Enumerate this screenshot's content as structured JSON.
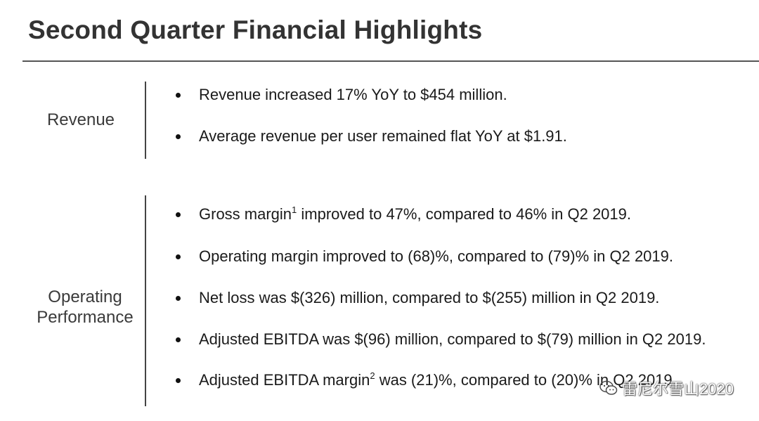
{
  "page": {
    "title": "Second Quarter Financial Highlights"
  },
  "sections": {
    "revenue": {
      "label": "Revenue",
      "bullets": [
        {
          "text": "Revenue increased 17% YoY to $454 million."
        },
        {
          "text": "Average revenue per user remained flat YoY at $1.91."
        }
      ]
    },
    "operating": {
      "label_line1": "Operating",
      "label_line2": "Performance",
      "bullets": [
        {
          "before": "Gross margin",
          "sup": "1",
          "after": " improved to 47%, compared to 46% in Q2 2019."
        },
        {
          "text": "Operating margin improved to (68)%, compared to (79)% in Q2 2019."
        },
        {
          "text": "Net loss was $(326) million, compared to $(255) million in Q2 2019."
        },
        {
          "text": "Adjusted EBITDA was $(96) million, compared to $(79) million in Q2 2019."
        },
        {
          "before": "Adjusted EBITDA margin",
          "sup": "2",
          "after": " was (21)%, compared to (20)% in Q2 2019."
        }
      ]
    }
  },
  "watermark": {
    "text": "雷尼尔雪山2020",
    "icon": "wechat-icon"
  },
  "colors": {
    "title": "#333333",
    "rule": "#555555",
    "text": "#1a1a1a"
  }
}
